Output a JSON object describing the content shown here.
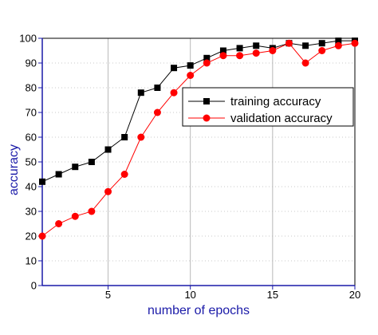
{
  "chart_data": {
    "type": "line",
    "title": "",
    "xlabel": "number of epochs",
    "ylabel": "accuracy",
    "xlim": [
      1,
      20
    ],
    "ylim": [
      0,
      100
    ],
    "x_ticks": [
      5,
      10,
      15,
      20
    ],
    "y_ticks": [
      0,
      10,
      20,
      30,
      40,
      50,
      60,
      70,
      80,
      90,
      100
    ],
    "grid": true,
    "legend_position": "upper-right",
    "x": [
      1,
      2,
      3,
      4,
      5,
      6,
      7,
      8,
      9,
      10,
      11,
      12,
      13,
      14,
      15,
      16,
      17,
      18,
      19,
      20
    ],
    "series": [
      {
        "name": "training accuracy",
        "color": "#000000",
        "marker": "square",
        "values": [
          42,
          45,
          48,
          50,
          55,
          60,
          78,
          80,
          88,
          89,
          92,
          95,
          96,
          97,
          96,
          98,
          97,
          98,
          99,
          99
        ]
      },
      {
        "name": "validation accuracy",
        "color": "#ff0000",
        "marker": "circle",
        "values": [
          20,
          25,
          28,
          30,
          38,
          45,
          60,
          70,
          78,
          85,
          90,
          93,
          93,
          94,
          95,
          98,
          90,
          95,
          97,
          98
        ]
      }
    ]
  }
}
